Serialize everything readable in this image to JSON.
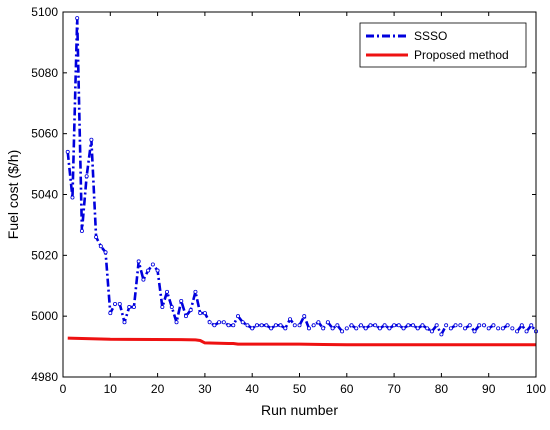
{
  "chart_data": {
    "type": "line",
    "title": "",
    "xlabel": "Run number",
    "ylabel": "Fuel cost ($/h)",
    "xlim": [
      0,
      100
    ],
    "ylim": [
      4980,
      5100
    ],
    "xticks": [
      0,
      10,
      20,
      30,
      40,
      50,
      60,
      70,
      80,
      90,
      100
    ],
    "yticks": [
      4980,
      5000,
      5020,
      5040,
      5060,
      5080,
      5100
    ],
    "xtick_labels": [
      "0",
      "10",
      "20",
      "30",
      "40",
      "50",
      "60",
      "70",
      "80",
      "90",
      "100"
    ],
    "ytick_labels": [
      "4980",
      "5000",
      "5020",
      "5040",
      "5060",
      "5080",
      "5100"
    ],
    "grid": false,
    "legend_position": "top-right",
    "series": [
      {
        "name": "SSSO",
        "color": "#0000dd",
        "style": "dash-dot with circle markers",
        "x": [
          1,
          2,
          3,
          4,
          5,
          6,
          7,
          8,
          9,
          10,
          11,
          12,
          13,
          14,
          15,
          16,
          17,
          18,
          19,
          20,
          21,
          22,
          23,
          24,
          25,
          26,
          27,
          28,
          29,
          30,
          31,
          32,
          33,
          34,
          35,
          36,
          37,
          38,
          39,
          40,
          41,
          42,
          43,
          44,
          45,
          46,
          47,
          48,
          49,
          50,
          51,
          52,
          53,
          54,
          55,
          56,
          57,
          58,
          59,
          60,
          61,
          62,
          63,
          64,
          65,
          66,
          67,
          68,
          69,
          70,
          71,
          72,
          73,
          74,
          75,
          76,
          77,
          78,
          79,
          80,
          81,
          82,
          83,
          84,
          85,
          86,
          87,
          88,
          89,
          90,
          91,
          92,
          93,
          94,
          95,
          96,
          97,
          98,
          99,
          100
        ],
        "values": [
          5054,
          5039,
          5098,
          5028,
          5046,
          5058,
          5026,
          5023,
          5021,
          5001,
          5004,
          5004,
          4998,
          5003,
          5003,
          5018,
          5012,
          5015,
          5017,
          5015,
          5003,
          5008,
          5003,
          4998,
          5005,
          5000,
          5002,
          5008,
          5001,
          5001,
          4998,
          4997,
          4998,
          4998,
          4997,
          4997,
          5000,
          4998,
          4997,
          4996,
          4997,
          4997,
          4997,
          4996,
          4997,
          4997,
          4996,
          4999,
          4997,
          4997,
          5000,
          4996,
          4997,
          4998,
          4996,
          4998,
          4996,
          4997,
          4995,
          4996,
          4997,
          4996,
          4997,
          4996,
          4997,
          4997,
          4996,
          4997,
          4996,
          4997,
          4997,
          4996,
          4997,
          4997,
          4996,
          4997,
          4996,
          4995,
          4997,
          4994,
          4997,
          4996,
          4997,
          4997,
          4996,
          4997,
          4995,
          4997,
          4997,
          4996,
          4997,
          4996,
          4996,
          4997,
          4996,
          4995,
          4997,
          4995,
          4997,
          4995
        ]
      },
      {
        "name": "Proposed method",
        "color": "#ee1111",
        "style": "solid",
        "x": [
          1,
          10,
          25,
          28,
          29,
          30,
          35,
          36,
          37,
          50,
          55,
          60,
          70,
          80,
          90,
          100
        ],
        "values": [
          4992.8,
          4992.4,
          4992.3,
          4992.2,
          4992.0,
          4991.2,
          4991.0,
          4991.0,
          4990.8,
          4990.8,
          4990.7,
          4990.6,
          4990.6,
          4990.6,
          4990.6,
          4990.6
        ]
      }
    ]
  }
}
